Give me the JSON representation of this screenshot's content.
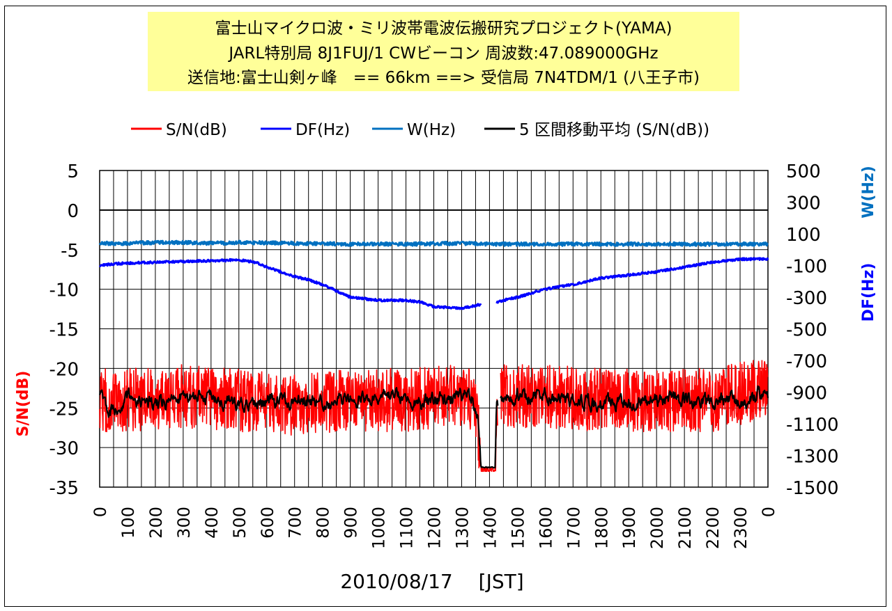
{
  "title_lines": [
    "富士山マイクロ波・ミリ波帯電波伝搬研究プロジェクト(YAMA)",
    "JARL特別局 8J1FUJ/1 CWビーコン 周波数:47.089000GHz",
    "送信地:富士山剣ヶ峰　== 66km ==> 受信局 7N4TDM/1 (八王子市)"
  ],
  "legend": [
    {
      "label": "S/N(dB)",
      "color": "#ff0000"
    },
    {
      "label": "DF(Hz)",
      "color": "#0000ff"
    },
    {
      "label": "W(Hz)",
      "color": "#0070c0"
    },
    {
      "label": "5 区間移動平均 (S/N(dB))",
      "color": "#000000"
    }
  ],
  "axes": {
    "left_label": "S/N(dB)",
    "right_label_w": "W(Hz)",
    "right_label_df": "DF(Hz)",
    "xlabel": "2010/08/17　 [JST]",
    "left_ticks": [
      "5",
      "0",
      "-5",
      "-10",
      "-15",
      "-20",
      "-25",
      "-30",
      "-35"
    ],
    "right_ticks": [
      "500",
      "300",
      "100",
      "-100",
      "-300",
      "-500",
      "-700",
      "-900",
      "-1100",
      "-1300",
      "-1500"
    ],
    "x_ticks": [
      "0",
      "100",
      "200",
      "300",
      "400",
      "500",
      "600",
      "700",
      "800",
      "900",
      "1000",
      "1100",
      "1200",
      "1300",
      "1400",
      "1500",
      "1600",
      "1700",
      "1800",
      "1900",
      "2000",
      "2100",
      "2200",
      "2300",
      "0"
    ]
  },
  "chart_data": {
    "type": "line",
    "x_range": [
      0,
      2400
    ],
    "left_ylim": [
      -35,
      5
    ],
    "right_ylim": [
      -1500,
      500
    ],
    "grid": true,
    "series": [
      {
        "name": "S/N(dB)",
        "axis": "left",
        "color": "#ff0000",
        "style": "noisy-band",
        "points": [
          [
            0,
            -24
          ],
          [
            100,
            -24
          ],
          [
            300,
            -23.5
          ],
          [
            500,
            -24
          ],
          [
            700,
            -24.5
          ],
          [
            900,
            -24
          ],
          [
            1100,
            -24
          ],
          [
            1300,
            -23.5
          ],
          [
            1340,
            -24
          ],
          [
            1360,
            -28
          ],
          [
            1370,
            -33
          ],
          [
            1420,
            -33
          ],
          [
            1430,
            -25
          ],
          [
            1440,
            -23.5
          ],
          [
            1600,
            -23.5
          ],
          [
            1800,
            -24
          ],
          [
            2000,
            -24
          ],
          [
            2200,
            -24
          ],
          [
            2400,
            -22.5
          ]
        ],
        "gaps": [
          [
            1430,
            1440
          ]
        ]
      },
      {
        "name": "DF(Hz)",
        "axis": "right",
        "color": "#0000ff",
        "style": "noisy-line",
        "points": [
          [
            0,
            -100
          ],
          [
            50,
            -90
          ],
          [
            100,
            -85
          ],
          [
            200,
            -80
          ],
          [
            300,
            -75
          ],
          [
            400,
            -70
          ],
          [
            500,
            -65
          ],
          [
            560,
            -80
          ],
          [
            600,
            -110
          ],
          [
            650,
            -140
          ],
          [
            700,
            -170
          ],
          [
            750,
            -190
          ],
          [
            800,
            -220
          ],
          [
            850,
            -260
          ],
          [
            900,
            -300
          ],
          [
            1000,
            -320
          ],
          [
            1100,
            -320
          ],
          [
            1150,
            -330
          ],
          [
            1200,
            -360
          ],
          [
            1300,
            -370
          ],
          [
            1360,
            -350
          ],
          [
            1420,
            -340
          ],
          [
            1450,
            -320
          ],
          [
            1500,
            -300
          ],
          [
            1600,
            -250
          ],
          [
            1700,
            -220
          ],
          [
            1800,
            -180
          ],
          [
            1900,
            -160
          ],
          [
            2000,
            -140
          ],
          [
            2100,
            -110
          ],
          [
            2200,
            -80
          ],
          [
            2300,
            -60
          ],
          [
            2400,
            -60
          ]
        ],
        "gaps": [
          [
            1370,
            1425
          ]
        ]
      },
      {
        "name": "W(Hz)",
        "axis": "right",
        "color": "#0070c0",
        "style": "noisy-line",
        "points": [
          [
            0,
            40
          ],
          [
            100,
            40
          ],
          [
            200,
            45
          ],
          [
            300,
            45
          ],
          [
            400,
            40
          ],
          [
            500,
            45
          ],
          [
            700,
            40
          ],
          [
            900,
            35
          ],
          [
            1100,
            35
          ],
          [
            1300,
            40
          ],
          [
            1400,
            35
          ],
          [
            1600,
            35
          ],
          [
            1800,
            35
          ],
          [
            2000,
            35
          ],
          [
            2200,
            35
          ],
          [
            2400,
            35
          ]
        ]
      },
      {
        "name": "5 区間移動平均 (S/N(dB))",
        "axis": "left",
        "color": "#000000",
        "style": "wiggly-line",
        "points": [
          [
            0,
            -24
          ],
          [
            50,
            -25.5
          ],
          [
            100,
            -23.5
          ],
          [
            200,
            -24.5
          ],
          [
            300,
            -23.5
          ],
          [
            400,
            -24
          ],
          [
            500,
            -24.5
          ],
          [
            600,
            -24
          ],
          [
            700,
            -24.5
          ],
          [
            800,
            -24
          ],
          [
            900,
            -24
          ],
          [
            1000,
            -23.5
          ],
          [
            1100,
            -24
          ],
          [
            1200,
            -24
          ],
          [
            1300,
            -23.5
          ],
          [
            1340,
            -24
          ],
          [
            1360,
            -27
          ],
          [
            1370,
            -32.5
          ],
          [
            1420,
            -32.5
          ],
          [
            1425,
            -25
          ],
          [
            1445,
            -23.5
          ],
          [
            1600,
            -23.5
          ],
          [
            1700,
            -24
          ],
          [
            1800,
            -24.5
          ],
          [
            1900,
            -24
          ],
          [
            2000,
            -24
          ],
          [
            2100,
            -24
          ],
          [
            2200,
            -24
          ],
          [
            2300,
            -24
          ],
          [
            2400,
            -23
          ]
        ],
        "gaps": [
          [
            1430,
            1440
          ]
        ]
      }
    ]
  }
}
